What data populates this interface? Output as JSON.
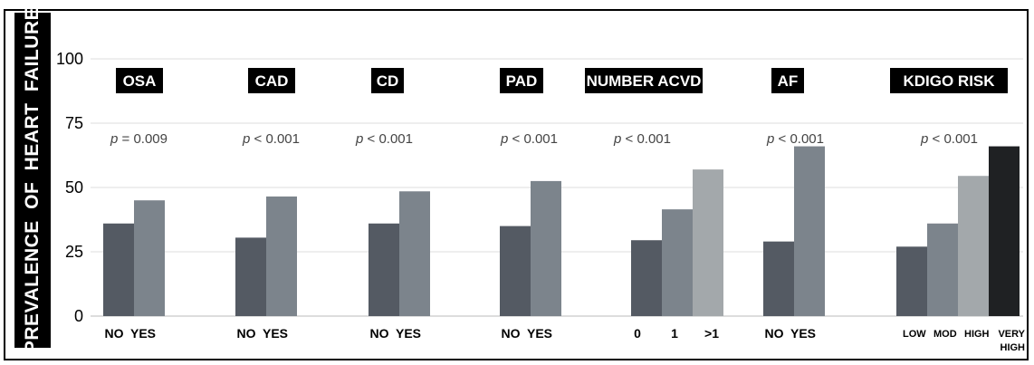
{
  "chart_data": {
    "type": "bar",
    "ylabel": "PREVALENCE OF HEART FAILURE",
    "ylim": [
      0,
      100
    ],
    "yticks": [
      0,
      25,
      50,
      75,
      100
    ],
    "grid": true,
    "groups": [
      {
        "label": "OSA",
        "p_value": "= 0.009",
        "categories": [
          "NO",
          "YES"
        ],
        "values": [
          36,
          45
        ]
      },
      {
        "label": "CAD",
        "p_value": "< 0.001",
        "categories": [
          "NO",
          "YES"
        ],
        "values": [
          30.5,
          46.5
        ]
      },
      {
        "label": "CD",
        "p_value": "< 0.001",
        "categories": [
          "NO",
          "YES"
        ],
        "values": [
          36,
          48.5
        ]
      },
      {
        "label": "PAD",
        "p_value": "< 0.001",
        "categories": [
          "NO",
          "YES"
        ],
        "values": [
          35,
          52.5
        ]
      },
      {
        "label": "NUMBER ACVD",
        "p_value": "< 0.001",
        "categories": [
          "0",
          "1",
          ">1"
        ],
        "values": [
          29.5,
          41.5,
          57
        ]
      },
      {
        "label": "AF",
        "p_value": "< 0.001",
        "categories": [
          "NO",
          "YES"
        ],
        "values": [
          29,
          66
        ]
      },
      {
        "label": "KDIGO RISK",
        "p_value": "< 0.001",
        "categories": [
          "LOW",
          "MOD",
          "HIGH",
          "VERY HIGH"
        ],
        "values": [
          27,
          36,
          54.5,
          66
        ]
      }
    ],
    "p_prefix": "p",
    "colors": {
      "bar_dark": "#545a63",
      "bar_mid": "#7c848c",
      "bar_light": "#a3a8ab",
      "bar_black": "#1f2123",
      "grid": "#dddddd"
    }
  }
}
